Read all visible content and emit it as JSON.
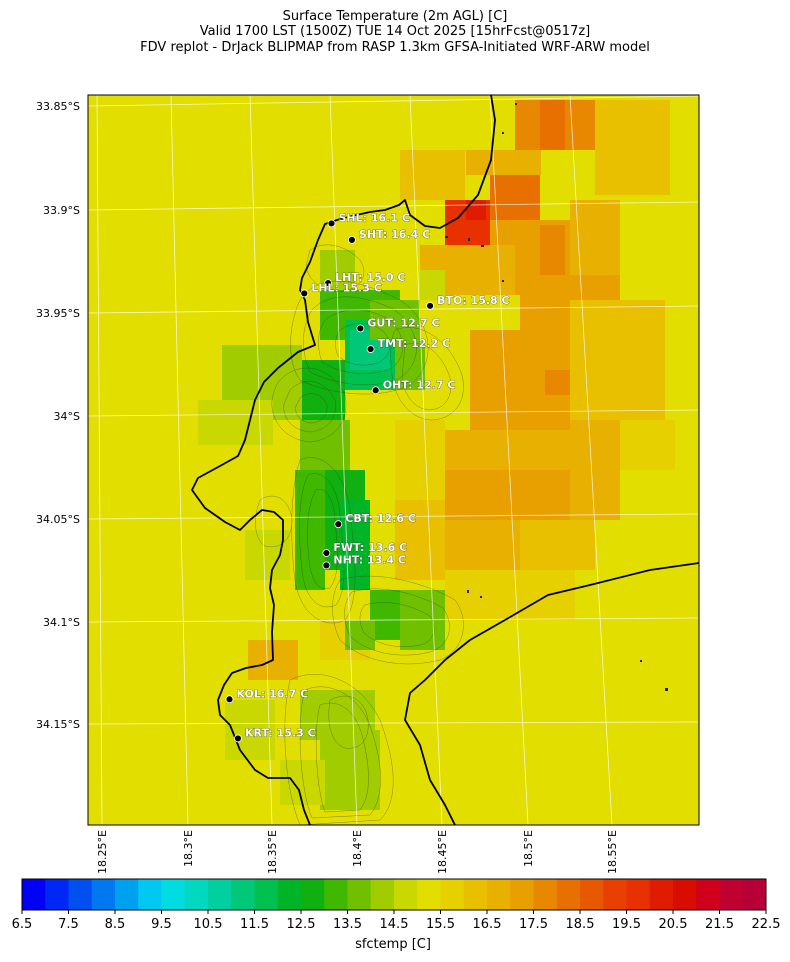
{
  "title_lines": [
    "Surface Temperature (2m AGL) [C]",
    "Valid 1700 LST (1500Z) TUE 14 Oct 2025 [15hrFcst@0517z]",
    "FDV replot - DrJack BLIPMAP from RASP 1.3km GFSA-Initiated WRF-ARW model"
  ],
  "map": {
    "lat_labels": [
      "33.85°S",
      "33.9°S",
      "33.95°S",
      "34°S",
      "34.05°S",
      "34.1°S",
      "34.15°S"
    ],
    "lon_labels": [
      "18.25°E",
      "18.3°E",
      "18.35°E",
      "18.4°E",
      "18.45°E",
      "18.5°E",
      "18.55°E"
    ],
    "field_color_base": "#e2df00",
    "stations": [
      {
        "label": "SHL: 16.1 C",
        "lat": -33.907,
        "lon": 18.385
      },
      {
        "label": "SHT: 16.4 C",
        "lat": -33.915,
        "lon": 18.397
      },
      {
        "label": "LHT: 15.0 C",
        "lat": -33.936,
        "lon": 18.383
      },
      {
        "label": "LHL: 15.3 C",
        "lat": -33.941,
        "lon": 18.369
      },
      {
        "label": "BTO: 15.8 C",
        "lat": -33.947,
        "lon": 18.443
      },
      {
        "label": "GUT: 12.7 C",
        "lat": -33.958,
        "lon": 18.402
      },
      {
        "label": "TMT: 12.2 C",
        "lat": -33.968,
        "lon": 18.408
      },
      {
        "label": "OHT: 12.7 C",
        "lat": -33.988,
        "lon": 18.411
      },
      {
        "label": "CBT: 12.6 C",
        "lat": -34.053,
        "lon": 18.389
      },
      {
        "label": "FWT: 13.6 C",
        "lat": -34.067,
        "lon": 18.382
      },
      {
        "label": "NHT: 13.4 C",
        "lat": -34.073,
        "lon": 18.382
      },
      {
        "label": "KOL: 16.7 C",
        "lat": -34.138,
        "lon": 18.325
      },
      {
        "label": "KRT: 15.3 C",
        "lat": -34.157,
        "lon": 18.33
      }
    ]
  },
  "colorbar": {
    "label": "sfctemp [C]",
    "min": 6.5,
    "max": 22.5,
    "step": 0.5,
    "tick_labels": [
      "6.5",
      "7.5",
      "8.5",
      "9.5",
      "10.5",
      "11.5",
      "12.5",
      "13.5",
      "14.5",
      "15.5",
      "16.5",
      "17.5",
      "18.5",
      "19.5",
      "20.5",
      "21.5",
      "22.5"
    ],
    "colors": [
      "#0000f5",
      "#0028f5",
      "#0050f0",
      "#0078f0",
      "#00a0f0",
      "#00c8f0",
      "#00dce0",
      "#00d8c0",
      "#00d0a0",
      "#00c878",
      "#00c050",
      "#00b428",
      "#10b010",
      "#40b800",
      "#70c000",
      "#a0cc00",
      "#c8d800",
      "#e2df00",
      "#e6d000",
      "#e8c000",
      "#e8b000",
      "#e8a000",
      "#e88800",
      "#e87000",
      "#e85800",
      "#e84000",
      "#e83000",
      "#e01c00",
      "#d80c00",
      "#d0001c",
      "#c00030",
      "#b80038"
    ]
  }
}
